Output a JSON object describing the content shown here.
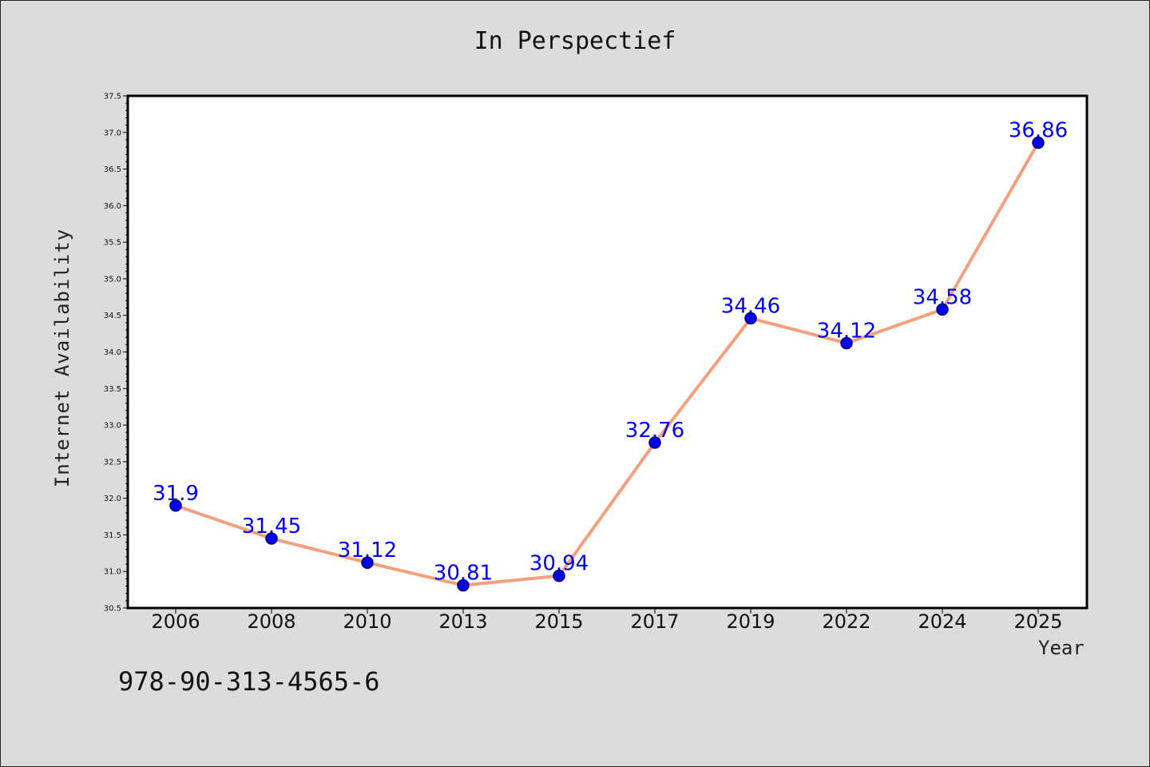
{
  "chart_data": {
    "type": "line",
    "title": "In Perspectief",
    "xlabel": "Year",
    "ylabel": "Internet Availability",
    "categories": [
      "2006",
      "2008",
      "2010",
      "2013",
      "2015",
      "2017",
      "2019",
      "2022",
      "2024",
      "2025"
    ],
    "series": [
      {
        "values": [
          31.9,
          31.45,
          31.12,
          30.81,
          30.94,
          32.76,
          34.46,
          34.12,
          34.58,
          36.86
        ]
      }
    ],
    "data_labels": [
      "31.9",
      "31.45",
      "31.12",
      "30.81",
      "30.94",
      "32.76",
      "34.46",
      "34.12",
      "34.58",
      "36.86"
    ],
    "ylim": [
      30.5,
      37.5
    ],
    "yticks": [
      "30.5",
      "31.0",
      "31.5",
      "32.0",
      "32.5",
      "33.0",
      "33.5",
      "34.0",
      "34.5",
      "35.0",
      "35.5",
      "36.0",
      "36.5",
      "37.0",
      "37.5"
    ],
    "grid": false,
    "colors": {
      "line": "#f4a07e",
      "marker": "#0000ee",
      "marker_edge": "#000066",
      "label": "#0000ee",
      "plot_background": "#ffffff",
      "figure_background": "#dcdcdc"
    }
  },
  "footer_text": "978-90-313-4565-6"
}
